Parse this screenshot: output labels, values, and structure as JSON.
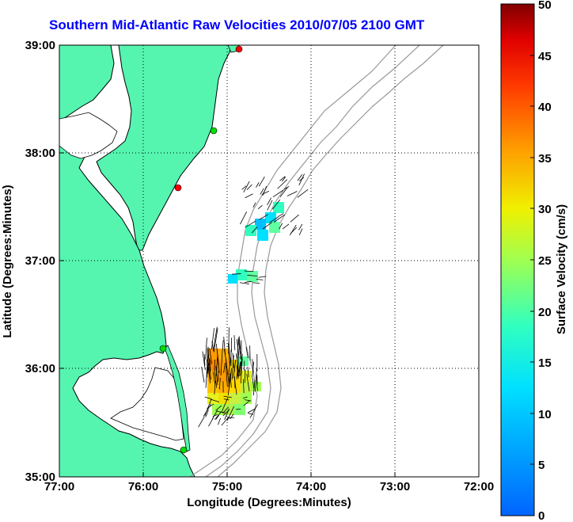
{
  "title": "Southern Mid-Atlantic Raw Velocities 2010/07/05 2100 GMT",
  "map": {
    "xlabel": "Longitude (Degrees:Minutes)",
    "ylabel": "Latitude (Degrees:Minutes)",
    "lon_ticks": [
      "77:00",
      "76:00",
      "75:00",
      "74:00",
      "73:00",
      "72:00"
    ],
    "lat_ticks": [
      "39:00",
      "38:00",
      "37:00",
      "36:00",
      "35:00"
    ],
    "land_color": "#55f5b0",
    "coast_color": "#000000",
    "bathy_color": "#999999",
    "grid": true
  },
  "colorbar": {
    "label": "Surface Velocity (cm/s)",
    "ticks": [
      "50",
      "45",
      "40",
      "35",
      "30",
      "25",
      "20",
      "15",
      "10",
      "5",
      "0"
    ],
    "min": 0,
    "max": 50,
    "colormap": "jet"
  },
  "stations": [
    {
      "color": "#ff0000"
    },
    {
      "color": "#00dd00"
    },
    {
      "color": "#ff0000"
    },
    {
      "color": "#00dd00"
    },
    {
      "color": "#00dd00"
    }
  ]
}
